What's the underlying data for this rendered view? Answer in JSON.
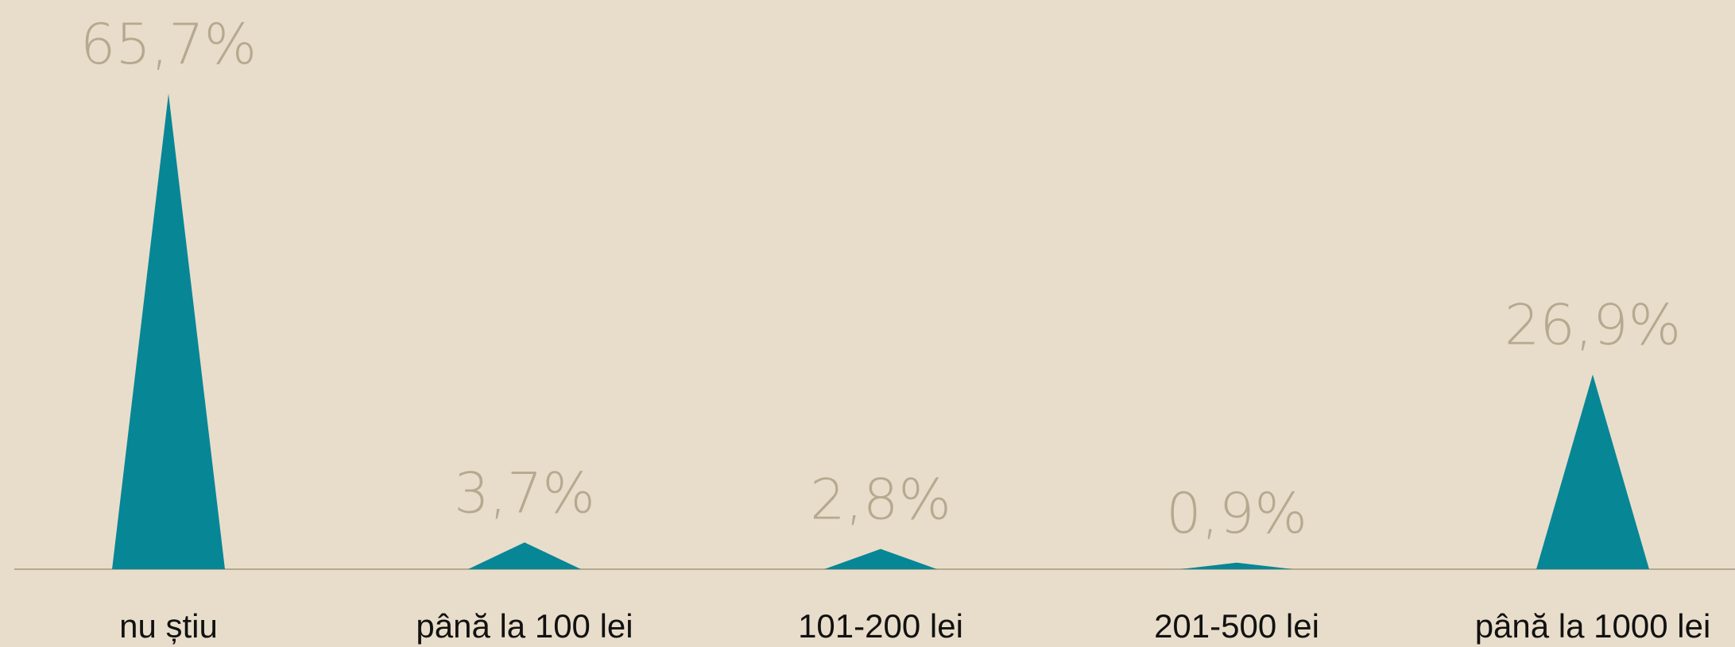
{
  "chart_data": {
    "type": "bar",
    "shape": "triangle",
    "categories": [
      "nu știu",
      "până la 100 lei",
      "101-200 lei",
      "201-500 lei",
      "până la 1000 lei"
    ],
    "values": [
      65.7,
      3.7,
      2.8,
      0.9,
      26.9
    ],
    "value_labels": [
      "65,7%",
      "3,7%",
      "2,8%",
      "0,9%",
      "26,9%"
    ],
    "color": "#078696"
  }
}
